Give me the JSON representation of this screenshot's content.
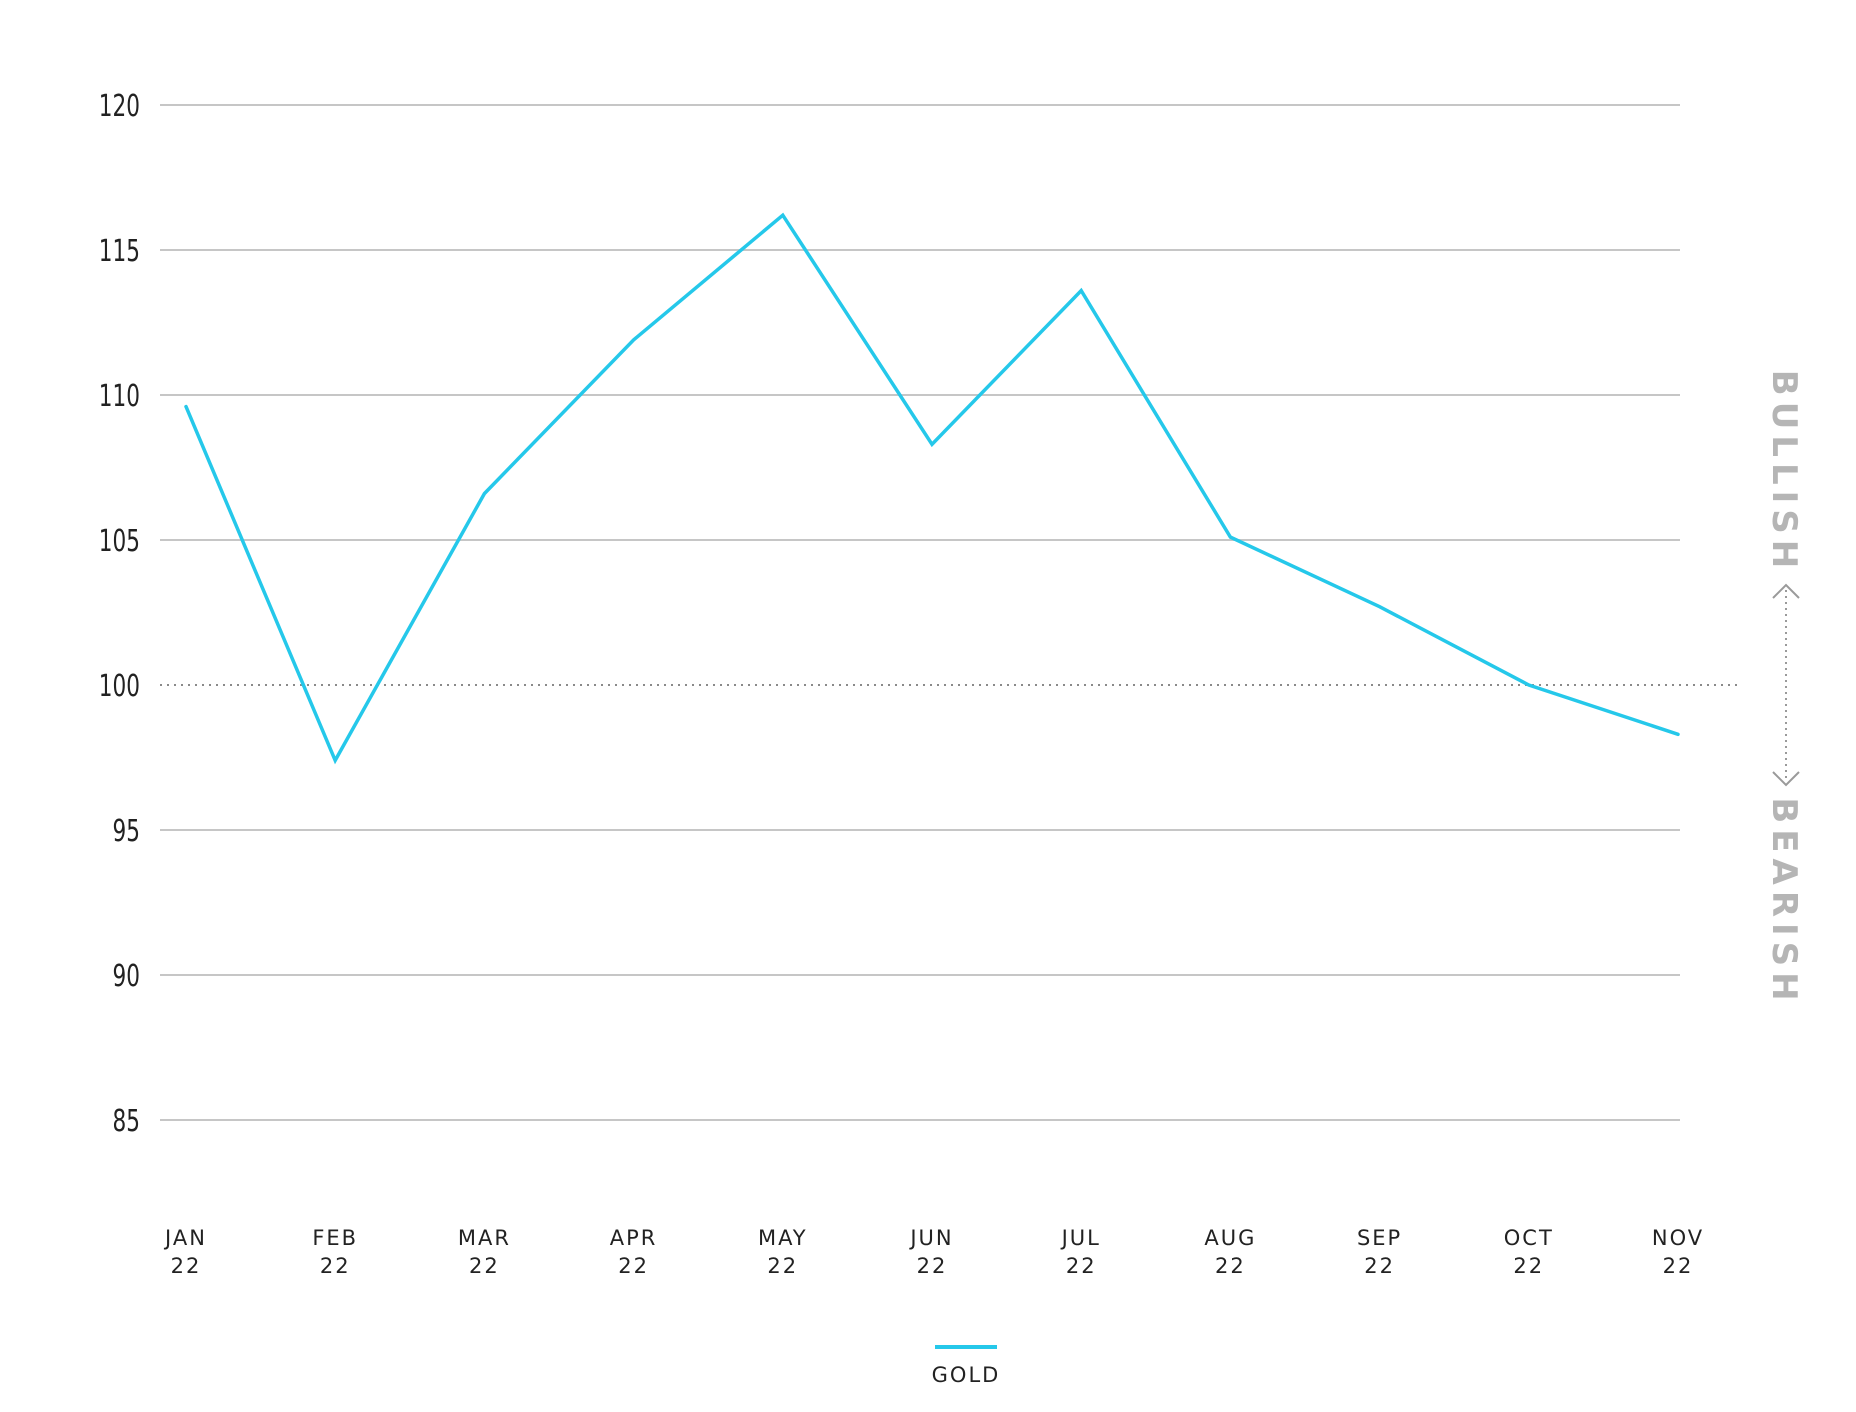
{
  "chart_data": {
    "type": "line",
    "categories": [
      [
        "JAN",
        "22"
      ],
      [
        "FEB",
        "22"
      ],
      [
        "MAR",
        "22"
      ],
      [
        "APR",
        "22"
      ],
      [
        "MAY",
        "22"
      ],
      [
        "JUN",
        "22"
      ],
      [
        "JUL",
        "22"
      ],
      [
        "AUG",
        "22"
      ],
      [
        "SEP",
        "22"
      ],
      [
        "OCT",
        "22"
      ],
      [
        "NOV",
        "22"
      ]
    ],
    "series": [
      {
        "name": "GOLD",
        "color": "#25c8ea",
        "values": [
          109.6,
          97.4,
          106.6,
          111.9,
          116.2,
          108.3,
          113.6,
          105.1,
          102.7,
          100.0,
          98.3
        ]
      }
    ],
    "ylim": [
      85,
      120
    ],
    "yticks": [
      120,
      115,
      110,
      105,
      100,
      95,
      90,
      85
    ],
    "reference_line": {
      "value": 100,
      "style": "dotted"
    },
    "grid": true,
    "legend_position": "bottom-center",
    "side_labels": {
      "upper": "BULLISH",
      "lower": "BEARISH"
    },
    "colors": {
      "grid": "#c6c6c6",
      "text": "#222222",
      "side_label": "#b5b5b5"
    }
  }
}
